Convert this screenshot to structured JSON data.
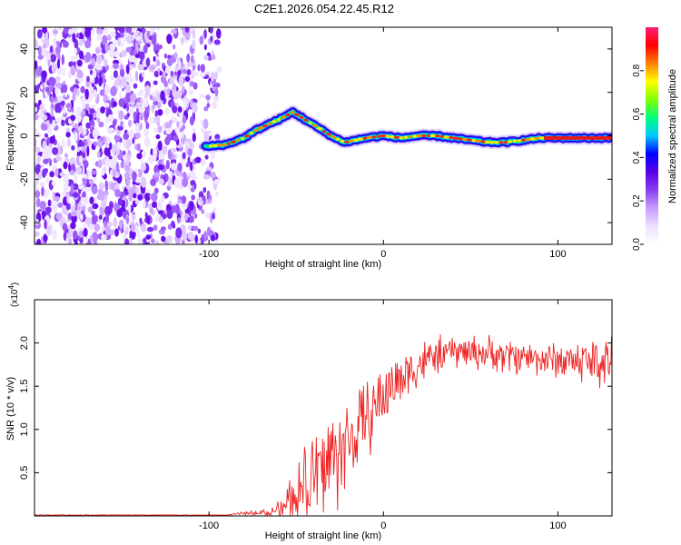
{
  "title": "C2E1.2026.054.22.45.R12",
  "chart_data": [
    {
      "type": "heatmap",
      "name": "spectrogram",
      "xlabel": "Height of straight line (km)",
      "ylabel": "Frequency (Hz)",
      "xlim": [
        -200,
        131
      ],
      "ylim": [
        -50,
        50
      ],
      "x_ticks": [
        -100,
        0,
        100
      ],
      "y_ticks": [
        -40,
        -20,
        0,
        20,
        40
      ],
      "colorbar": {
        "label": "Normalized spectral amplitude",
        "range": [
          0,
          1
        ],
        "ticks": [
          0.0,
          0.2,
          0.4,
          0.6,
          0.8
        ],
        "colors": [
          "#ffffff",
          "#ece0ff",
          "#c89cff",
          "#8a3cf0",
          "#5a00e6",
          "#0000ff",
          "#00c8ff",
          "#00ff80",
          "#80ff00",
          "#ffff00",
          "#ff8000",
          "#ff0000",
          "#ff1e78"
        ]
      },
      "noise_region_x": [
        -200,
        -100
      ],
      "ridge": {
        "x": [
          -102,
          -90,
          -80,
          -72,
          -64,
          -56,
          -52,
          -48,
          -44,
          -40,
          -34,
          -28,
          -22,
          -16,
          -10,
          0,
          10,
          20,
          30,
          40,
          50,
          60,
          70,
          80,
          90,
          100,
          110,
          120,
          131
        ],
        "freq_hz": [
          -5,
          -4,
          -1,
          3,
          6,
          9,
          11,
          9,
          7,
          5,
          2,
          -1,
          -3,
          -2,
          -1,
          0,
          -1,
          0,
          0,
          -1,
          -2,
          -3,
          -3,
          -2,
          -1,
          -1,
          -1,
          -1,
          -1
        ]
      }
    },
    {
      "type": "line",
      "name": "snr",
      "xlabel": "Height of straight line (km)",
      "ylabel": "SNR (10 * v/v)",
      "scale_label": "(x10",
      "scale_exponent": "4",
      "scale_close": ")",
      "xlim": [
        -200,
        131
      ],
      "ylim": [
        0,
        2.5
      ],
      "x_ticks": [
        -100,
        0,
        100
      ],
      "y_ticks": [
        0.5,
        1.0,
        1.5,
        2.0
      ],
      "color": "#ee2222",
      "envelope": {
        "x": [
          -200,
          -90,
          -80,
          -70,
          -60,
          -50,
          -40,
          -30,
          -20,
          -10,
          0,
          10,
          20,
          30,
          40,
          50,
          60,
          70,
          80,
          90,
          100,
          110,
          120,
          131
        ],
        "mean": [
          0.01,
          0.01,
          0.03,
          0.04,
          0.08,
          0.25,
          0.45,
          0.65,
          0.85,
          1.1,
          1.4,
          1.6,
          1.75,
          1.85,
          1.9,
          1.9,
          1.88,
          1.85,
          1.85,
          1.82,
          1.8,
          1.8,
          1.78,
          1.8
        ],
        "spread": [
          0.005,
          0.005,
          0.02,
          0.03,
          0.12,
          0.4,
          0.6,
          0.7,
          0.55,
          0.45,
          0.4,
          0.32,
          0.28,
          0.22,
          0.2,
          0.2,
          0.2,
          0.22,
          0.2,
          0.2,
          0.22,
          0.25,
          0.3,
          0.4
        ]
      }
    }
  ]
}
